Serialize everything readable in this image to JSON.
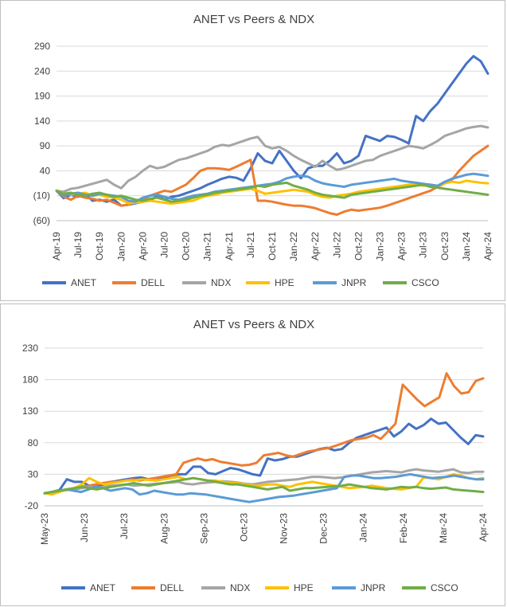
{
  "chart_data": [
    {
      "type": "line",
      "title": "ANET vs Peers & NDX",
      "xlabel": "",
      "ylabel": "",
      "ylim": [
        -60,
        290
      ],
      "yticks": [
        -60,
        -10,
        40,
        90,
        140,
        190,
        240,
        290
      ],
      "ytick_labels": [
        "(60)",
        "(10)",
        "40",
        "90",
        "140",
        "190",
        "240",
        "290"
      ],
      "x": [
        "Apr-19",
        "May-19",
        "Jun-19",
        "Jul-19",
        "Aug-19",
        "Sep-19",
        "Oct-19",
        "Nov-19",
        "Dec-19",
        "Jan-20",
        "Feb-20",
        "Mar-20",
        "Apr-20",
        "May-20",
        "Jun-20",
        "Jul-20",
        "Aug-20",
        "Sep-20",
        "Oct-20",
        "Nov-20",
        "Dec-20",
        "Jan-21",
        "Feb-21",
        "Mar-21",
        "Apr-21",
        "May-21",
        "Jun-21",
        "Jul-21",
        "Aug-21",
        "Sep-21",
        "Oct-21",
        "Nov-21",
        "Dec-21",
        "Jan-22",
        "Feb-22",
        "Mar-22",
        "Apr-22",
        "May-22",
        "Jun-22",
        "Jul-22",
        "Aug-22",
        "Sep-22",
        "Oct-22",
        "Nov-22",
        "Dec-22",
        "Jan-23",
        "Feb-23",
        "Mar-23",
        "Apr-23",
        "May-23",
        "Jun-23",
        "Jul-23",
        "Aug-23",
        "Sep-23",
        "Oct-23",
        "Nov-23",
        "Dec-23",
        "Jan-24",
        "Feb-24",
        "Mar-24",
        "Apr-24"
      ],
      "x_tick_labels": [
        "Apr-19",
        "Jul-19",
        "Oct-19",
        "Jan-20",
        "Apr-20",
        "Jul-20",
        "Oct-20",
        "Jan-21",
        "Apr-21",
        "Jul-21",
        "Oct-21",
        "Jan-22",
        "Apr-22",
        "Jul-22",
        "Oct-22",
        "Jan-23",
        "Apr-23",
        "Jul-23",
        "Oct-23",
        "Jan-24",
        "Apr-24"
      ],
      "legend_position": "bottom",
      "grid": true,
      "series": [
        {
          "name": "ANET",
          "color": "#4472C4",
          "values": [
            0,
            -15,
            -8,
            -12,
            -6,
            -20,
            -18,
            -22,
            -18,
            -30,
            -28,
            -25,
            -22,
            -20,
            -10,
            -18,
            -12,
            -10,
            -5,
            0,
            5,
            12,
            18,
            24,
            28,
            26,
            20,
            45,
            75,
            60,
            55,
            80,
            60,
            40,
            25,
            45,
            50,
            50,
            60,
            75,
            55,
            60,
            70,
            110,
            105,
            100,
            110,
            108,
            102,
            95,
            150,
            140,
            160,
            175,
            195,
            215,
            235,
            255,
            270,
            260,
            235
          ]
        },
        {
          "name": "DELL",
          "color": "#ED7D31",
          "values": [
            0,
            -12,
            -18,
            -10,
            -14,
            -16,
            -20,
            -18,
            -24,
            -30,
            -28,
            -22,
            -16,
            -10,
            -5,
            0,
            -2,
            5,
            12,
            25,
            40,
            45,
            45,
            44,
            42,
            48,
            55,
            62,
            -20,
            -20,
            -22,
            -25,
            -28,
            -30,
            -30,
            -32,
            -35,
            -40,
            -45,
            -48,
            -42,
            -38,
            -40,
            -38,
            -36,
            -34,
            -30,
            -25,
            -20,
            -15,
            -10,
            -5,
            0,
            8,
            15,
            22,
            40,
            55,
            70,
            80,
            90
          ]
        },
        {
          "name": "NDX",
          "color": "#A5A5A5",
          "values": [
            0,
            -2,
            4,
            6,
            10,
            14,
            18,
            22,
            12,
            5,
            20,
            28,
            40,
            50,
            45,
            48,
            55,
            62,
            65,
            70,
            75,
            80,
            88,
            92,
            90,
            95,
            100,
            105,
            108,
            90,
            85,
            88,
            80,
            70,
            62,
            55,
            48,
            60,
            50,
            42,
            45,
            50,
            55,
            60,
            62,
            70,
            75,
            80,
            85,
            90,
            88,
            85,
            92,
            100,
            110,
            115,
            120,
            125,
            128,
            130,
            127
          ]
        },
        {
          "name": "HPE",
          "color": "#FFC000",
          "values": [
            0,
            -5,
            -8,
            -6,
            -4,
            -10,
            -8,
            -12,
            -14,
            -18,
            -25,
            -24,
            -22,
            -20,
            -22,
            -24,
            -26,
            -24,
            -22,
            -20,
            -14,
            -10,
            -8,
            -4,
            -2,
            0,
            2,
            4,
            0,
            -6,
            -4,
            -2,
            0,
            2,
            0,
            -2,
            -8,
            -12,
            -14,
            -10,
            -8,
            -6,
            -2,
            0,
            2,
            4,
            6,
            8,
            10,
            12,
            14,
            10,
            12,
            10,
            15,
            18,
            16,
            20,
            18,
            16,
            15
          ]
        },
        {
          "name": "JNPR",
          "color": "#5B9BD5",
          "values": [
            0,
            -10,
            -6,
            -4,
            -8,
            -10,
            -6,
            -8,
            -10,
            -12,
            -20,
            -22,
            -14,
            -10,
            -8,
            -12,
            -16,
            -18,
            -14,
            -10,
            -8,
            -6,
            -2,
            0,
            2,
            4,
            6,
            8,
            10,
            12,
            14,
            18,
            25,
            28,
            30,
            28,
            20,
            15,
            12,
            10,
            8,
            12,
            14,
            16,
            18,
            20,
            22,
            24,
            20,
            18,
            16,
            14,
            12,
            10,
            18,
            24,
            28,
            32,
            34,
            32,
            30
          ]
        },
        {
          "name": "CSCO",
          "color": "#70AD47",
          "values": [
            0,
            -6,
            -4,
            -8,
            -10,
            -6,
            -4,
            -8,
            -12,
            -10,
            -14,
            -18,
            -20,
            -16,
            -14,
            -18,
            -22,
            -20,
            -18,
            -14,
            -10,
            -8,
            -4,
            -2,
            0,
            2,
            4,
            6,
            10,
            8,
            12,
            14,
            16,
            10,
            6,
            2,
            -4,
            -8,
            -10,
            -12,
            -14,
            -8,
            -6,
            -4,
            -2,
            0,
            2,
            4,
            6,
            8,
            10,
            12,
            8,
            6,
            4,
            2,
            0,
            -2,
            -4,
            -6,
            -8
          ]
        }
      ]
    },
    {
      "type": "line",
      "title": "ANET vs Peers & NDX",
      "xlabel": "",
      "ylabel": "",
      "ylim": [
        -20,
        230
      ],
      "yticks": [
        -20,
        30,
        80,
        130,
        180,
        230
      ],
      "ytick_labels": [
        "-20",
        "30",
        "80",
        "130",
        "180",
        "230"
      ],
      "x_tick_labels": [
        "May-23",
        "Jun-23",
        "Jul-23",
        "Aug-23",
        "Sep-23",
        "Oct-23",
        "Nov-23",
        "Dec-23",
        "Jan-24",
        "Feb-24",
        "Mar-24",
        "Apr-24"
      ],
      "points_per_month": 4,
      "legend_position": "bottom",
      "grid": true,
      "series": [
        {
          "name": "ANET",
          "color": "#4472C4",
          "values": [
            0,
            2,
            5,
            22,
            18,
            18,
            12,
            10,
            14,
            18,
            20,
            22,
            24,
            25,
            22,
            20,
            25,
            28,
            30,
            30,
            42,
            42,
            32,
            30,
            35,
            40,
            38,
            34,
            30,
            28,
            55,
            52,
            54,
            58,
            58,
            62,
            66,
            70,
            72,
            68,
            70,
            80,
            88,
            92,
            96,
            100,
            104,
            90,
            98,
            110,
            102,
            108,
            118,
            110,
            112,
            100,
            88,
            78,
            92,
            90
          ]
        },
        {
          "name": "DELL",
          "color": "#ED7D31",
          "values": [
            0,
            2,
            4,
            6,
            8,
            10,
            12,
            14,
            16,
            18,
            18,
            20,
            22,
            20,
            22,
            24,
            26,
            28,
            30,
            48,
            52,
            55,
            52,
            54,
            50,
            48,
            46,
            44,
            45,
            48,
            60,
            62,
            64,
            60,
            58,
            62,
            66,
            68,
            70,
            72,
            76,
            80,
            84,
            86,
            88,
            92,
            86,
            98,
            110,
            172,
            160,
            148,
            138,
            145,
            152,
            190,
            170,
            158,
            160,
            178,
            182
          ]
        },
        {
          "name": "NDX",
          "color": "#A5A5A5",
          "values": [
            0,
            2,
            3,
            5,
            6,
            8,
            10,
            9,
            10,
            12,
            13,
            14,
            12,
            13,
            14,
            15,
            16,
            17,
            18,
            15,
            14,
            16,
            17,
            18,
            19,
            18,
            17,
            15,
            14,
            16,
            18,
            19,
            20,
            21,
            22,
            24,
            26,
            26,
            25,
            24,
            25,
            27,
            29,
            31,
            33,
            34,
            35,
            34,
            33,
            36,
            38,
            36,
            35,
            34,
            36,
            38,
            33,
            32,
            34,
            34
          ]
        },
        {
          "name": "HPE",
          "color": "#FFC000",
          "values": [
            0,
            -2,
            2,
            6,
            8,
            14,
            24,
            18,
            14,
            16,
            18,
            20,
            20,
            22,
            21,
            20,
            22,
            24,
            26,
            22,
            24,
            22,
            20,
            20,
            18,
            16,
            16,
            14,
            12,
            12,
            14,
            14,
            12,
            10,
            14,
            16,
            18,
            16,
            14,
            12,
            10,
            8,
            9,
            10,
            12,
            10,
            8,
            7,
            6,
            8,
            10,
            25,
            24,
            22,
            26,
            30,
            28,
            24,
            22,
            24
          ]
        },
        {
          "name": "JNPR",
          "color": "#5B9BD5",
          "values": [
            0,
            2,
            4,
            6,
            4,
            2,
            6,
            10,
            8,
            4,
            6,
            8,
            6,
            -2,
            0,
            4,
            2,
            0,
            -2,
            -2,
            0,
            -1,
            -2,
            -4,
            -6,
            -8,
            -10,
            -12,
            -14,
            -12,
            -10,
            -8,
            -6,
            -5,
            -4,
            -2,
            0,
            2,
            4,
            6,
            8,
            26,
            28,
            28,
            26,
            24,
            24,
            25,
            26,
            28,
            30,
            28,
            26,
            24,
            25,
            26,
            28,
            26,
            24,
            22,
            22
          ]
        },
        {
          "name": "CSCO",
          "color": "#70AD47",
          "values": [
            0,
            2,
            4,
            6,
            8,
            10,
            8,
            6,
            8,
            10,
            12,
            14,
            16,
            14,
            12,
            14,
            16,
            18,
            20,
            22,
            24,
            22,
            20,
            18,
            16,
            14,
            14,
            12,
            10,
            8,
            6,
            8,
            10,
            4,
            6,
            8,
            8,
            9,
            10,
            11,
            12,
            14,
            12,
            10,
            8,
            7,
            6,
            8,
            10,
            9,
            10,
            8,
            7,
            8,
            9,
            6,
            5,
            4,
            3,
            2
          ]
        }
      ]
    }
  ]
}
